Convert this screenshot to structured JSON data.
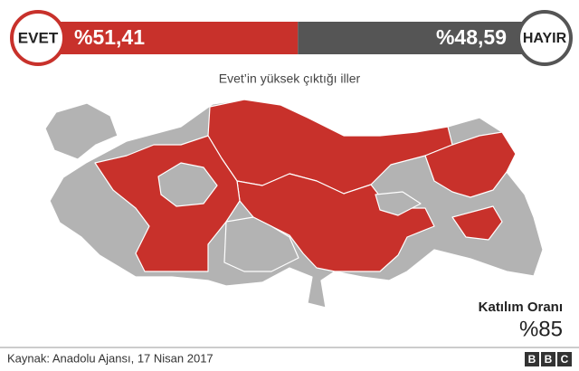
{
  "header": {
    "yes": {
      "label": "EVET",
      "value": 51.41,
      "value_label": "%51,41"
    },
    "no": {
      "label": "HAYIR",
      "value": 48.59,
      "value_label": "%48,59"
    }
  },
  "map": {
    "title": "Evet’in yüksek çıktığı iller"
  },
  "turnout": {
    "label": "Katılım Oranı",
    "value_label": "%85"
  },
  "footer": {
    "source": "Kaynak: Anadolu Ajansı, 17 Nisan 2017",
    "logo": [
      "B",
      "B",
      "C"
    ]
  }
}
